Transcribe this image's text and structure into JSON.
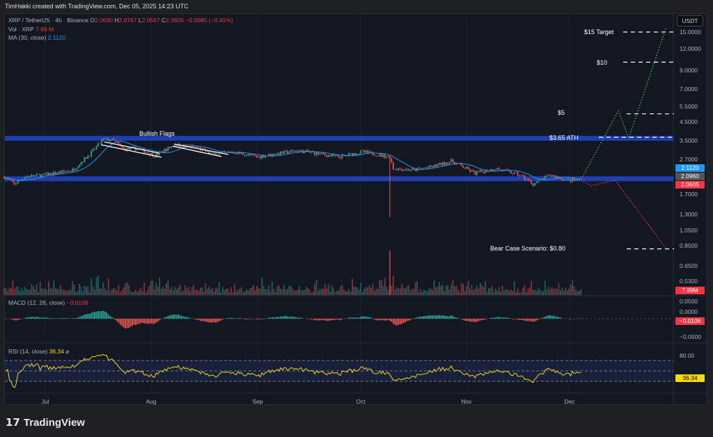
{
  "credit": "TimHakki created with TradingView.com, Dec 05, 2025 14:23 UTC",
  "header": {
    "symbol": "XRP / TetherUS · 4h · Binance",
    "o_label": "O",
    "o": "2.0690",
    "h_label": "H",
    "h": "2.0767",
    "l_label": "L",
    "l": "2.0567",
    "c_label": "C",
    "c": "2.0605",
    "change": "−0.0085 (−0.41%)",
    "vol_label": "Vol · XRP",
    "vol": "7.99 M",
    "ma_label": "MA (30, close)",
    "ma": "2.1120"
  },
  "currency": "USDT",
  "price_axis": [
    "15.0000",
    "12.0000",
    "9.0000",
    "7.0000",
    "5.5000",
    "4.5000",
    "3.5000",
    "2.7000",
    "1.7000",
    "1.3000",
    "1.0500",
    "0.8500",
    "0.6500",
    "0.5300"
  ],
  "price_tags": {
    "ma": "2.1120",
    "mid": "2.0960",
    "last": "2.0605",
    "vol": "7.99M",
    "macd": "−0.0106",
    "rsi": "36.34"
  },
  "macd": {
    "label": "MACD (12, 26, close)",
    "value": "−0.0106",
    "axis": [
      "0.0500",
      "0.0000",
      "−0.0500"
    ]
  },
  "rsi": {
    "label": "RSI (14, close)",
    "value": "36.34",
    "axis": [
      "80.00"
    ]
  },
  "time_axis": [
    "Jul",
    "Aug",
    "Sep",
    "Oct",
    "Nov",
    "Dec"
  ],
  "annotations": {
    "flags": "Bullish Flags",
    "target15": "$15 Target",
    "t10": "$10",
    "t5": "$5",
    "ath": "$3.65 ATH",
    "bear": "Bear Case Scenario: $0.80"
  },
  "logo": "TradingView",
  "colors": {
    "up": "#26a69a",
    "down": "#ef5350",
    "ma": "#2196f3",
    "band": "#1e3fb0",
    "bull_proj": "#4caf50",
    "bear_proj": "#f23645",
    "rsi": "#f5d90a"
  },
  "chart_data": {
    "type": "candlestick",
    "scale": "log",
    "ylim": [
      0.5,
      16.5
    ],
    "key_closes": [
      [
        "2025-06-19",
        2.15
      ],
      [
        "2025-06-22",
        1.95
      ],
      [
        "2025-06-25",
        2.15
      ],
      [
        "2025-07-01",
        2.2
      ],
      [
        "2025-07-09",
        2.35
      ],
      [
        "2025-07-14",
        2.9
      ],
      [
        "2025-07-18",
        3.55
      ],
      [
        "2025-07-21",
        3.5
      ],
      [
        "2025-07-24",
        3.1
      ],
      [
        "2025-07-28",
        3.15
      ],
      [
        "2025-08-02",
        2.85
      ],
      [
        "2025-08-08",
        3.3
      ],
      [
        "2025-08-14",
        3.2
      ],
      [
        "2025-08-19",
        2.9
      ],
      [
        "2025-08-25",
        3.0
      ],
      [
        "2025-09-01",
        2.8
      ],
      [
        "2025-09-08",
        2.95
      ],
      [
        "2025-09-13",
        3.05
      ],
      [
        "2025-09-20",
        2.9
      ],
      [
        "2025-09-25",
        2.8
      ],
      [
        "2025-10-02",
        3.0
      ],
      [
        "2025-10-10",
        2.8
      ],
      [
        "2025-10-11",
        2.4
      ],
      [
        "2025-10-17",
        2.35
      ],
      [
        "2025-10-22",
        2.45
      ],
      [
        "2025-10-28",
        2.65
      ],
      [
        "2025-11-04",
        2.25
      ],
      [
        "2025-11-10",
        2.4
      ],
      [
        "2025-11-17",
        2.2
      ],
      [
        "2025-11-21",
        1.95
      ],
      [
        "2025-11-26",
        2.2
      ],
      [
        "2025-12-01",
        2.05
      ],
      [
        "2025-12-05",
        2.06
      ]
    ],
    "crash_wick": [
      "2025-10-10",
      1.25
    ],
    "bull_projection": [
      [
        "2025-12-05",
        2.06
      ],
      [
        "2025-12-16",
        5.2
      ],
      [
        "2025-12-19",
        3.6
      ],
      [
        "2025-12-30",
        16.0
      ]
    ],
    "bear_projection": [
      [
        "2025-12-05",
        2.06
      ],
      [
        "2025-12-08",
        1.9
      ],
      [
        "2025-12-15",
        2.05
      ],
      [
        "2025-12-30",
        0.82
      ]
    ],
    "levels": [
      15,
      10,
      5,
      3.65,
      0.8
    ],
    "bands": [
      3.6,
      2.09
    ]
  }
}
